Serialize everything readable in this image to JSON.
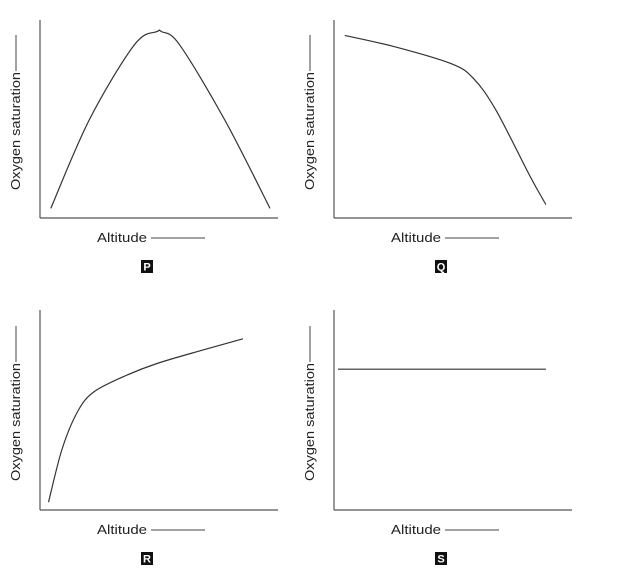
{
  "chart_data": [
    {
      "id": "P",
      "type": "line",
      "xlabel": "Altitude",
      "ylabel": "Oxygen saturation",
      "panel_label": "P",
      "xlim": [
        0,
        100
      ],
      "ylim": [
        0,
        100
      ],
      "ticks": "none",
      "grid": false,
      "series": [
        {
          "x": [
            3,
            20,
            40,
            50,
            52,
            60,
            80,
            100
          ],
          "y": [
            3,
            50,
            90,
            97,
            97,
            90,
            50,
            3
          ]
        }
      ]
    },
    {
      "id": "Q",
      "type": "line",
      "xlabel": "Altitude",
      "ylabel": "Oxygen saturation",
      "panel_label": "Q",
      "xlim": [
        0,
        100
      ],
      "ylim": [
        0,
        100
      ],
      "ticks": "none",
      "grid": false,
      "series": [
        {
          "x": [
            3,
            25,
            50,
            60,
            70,
            85,
            92
          ],
          "y": [
            95,
            89,
            80,
            72,
            55,
            20,
            5
          ]
        }
      ]
    },
    {
      "id": "R",
      "type": "line",
      "xlabel": "Altitude",
      "ylabel": "Oxygen saturation",
      "panel_label": "R",
      "xlim": [
        0,
        100
      ],
      "ylim": [
        0,
        100
      ],
      "ticks": "none",
      "grid": false,
      "series": [
        {
          "x": [
            2,
            8,
            15,
            22,
            35,
            50,
            70,
            88
          ],
          "y": [
            2,
            30,
            50,
            60,
            68,
            75,
            82,
            88
          ]
        }
      ]
    },
    {
      "id": "S",
      "type": "line",
      "xlabel": "Altitude",
      "ylabel": "Oxygen saturation",
      "panel_label": "S",
      "xlim": [
        0,
        100
      ],
      "ylim": [
        0,
        100
      ],
      "ticks": "none",
      "grid": false,
      "series": [
        {
          "x": [
            0,
            92
          ],
          "y": [
            72,
            72
          ]
        }
      ]
    }
  ]
}
